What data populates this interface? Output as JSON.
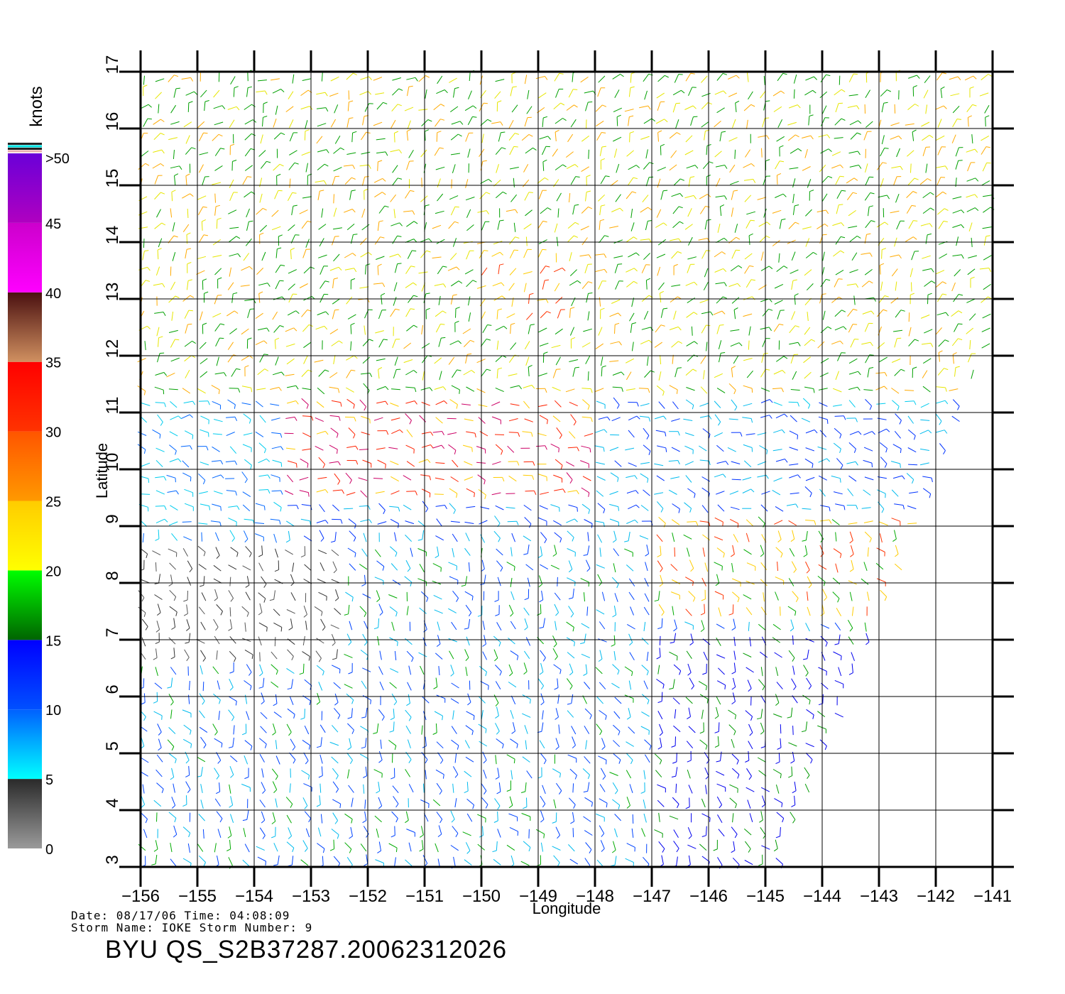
{
  "map": {
    "title": "BYU  QS_S2B37287.20062312026",
    "date_line": "Date: 08/17/06   Time: 04:08:09",
    "storm_line": "Storm  Name: IOKE    Storm  Number: 9",
    "x_axis_label": "Longitude",
    "y_axis_label": "Latitude",
    "lon_range": [
      -156,
      -141
    ],
    "lat_range": [
      3,
      17
    ],
    "lon_ticks": [
      -156,
      -155,
      -154,
      -153,
      -152,
      -151,
      -150,
      -149,
      -148,
      -147,
      -146,
      -145,
      -144,
      -143,
      -142,
      -141
    ],
    "lat_ticks": [
      3,
      4,
      5,
      6,
      7,
      8,
      9,
      10,
      11,
      12,
      13,
      14,
      15,
      16,
      17
    ],
    "grid": true,
    "field": "scatterometer wind barbs"
  },
  "legend": {
    "unit": "knots",
    "bins": [
      {
        "label": "0",
        "from": "#9a9a9a",
        "to": "#2a2a2a"
      },
      {
        "label": "5",
        "from": "#00ffff",
        "to": "#0060ff"
      },
      {
        "label": "10",
        "from": "#0050ff",
        "to": "#0000ff"
      },
      {
        "label": "15",
        "from": "#006400",
        "to": "#00ff00"
      },
      {
        "label": "20",
        "from": "#ffff00",
        "to": "#ffcc00"
      },
      {
        "label": "25",
        "from": "#ff9900",
        "to": "#ff5500"
      },
      {
        "label": "30",
        "from": "#ff3300",
        "to": "#ff0000"
      },
      {
        "label": "35",
        "from": "#d09060",
        "to": "#4a1010"
      },
      {
        "label": "40",
        "from": "#ff00ff",
        "to": "#cc00cc"
      },
      {
        "label": "45",
        "from": "#b000c0",
        "to": "#6a00d8"
      }
    ],
    "top_label": ">50",
    "cap_colors": [
      "#222222",
      "#00e0e0",
      "#222222",
      "#e8b0b0"
    ]
  }
}
